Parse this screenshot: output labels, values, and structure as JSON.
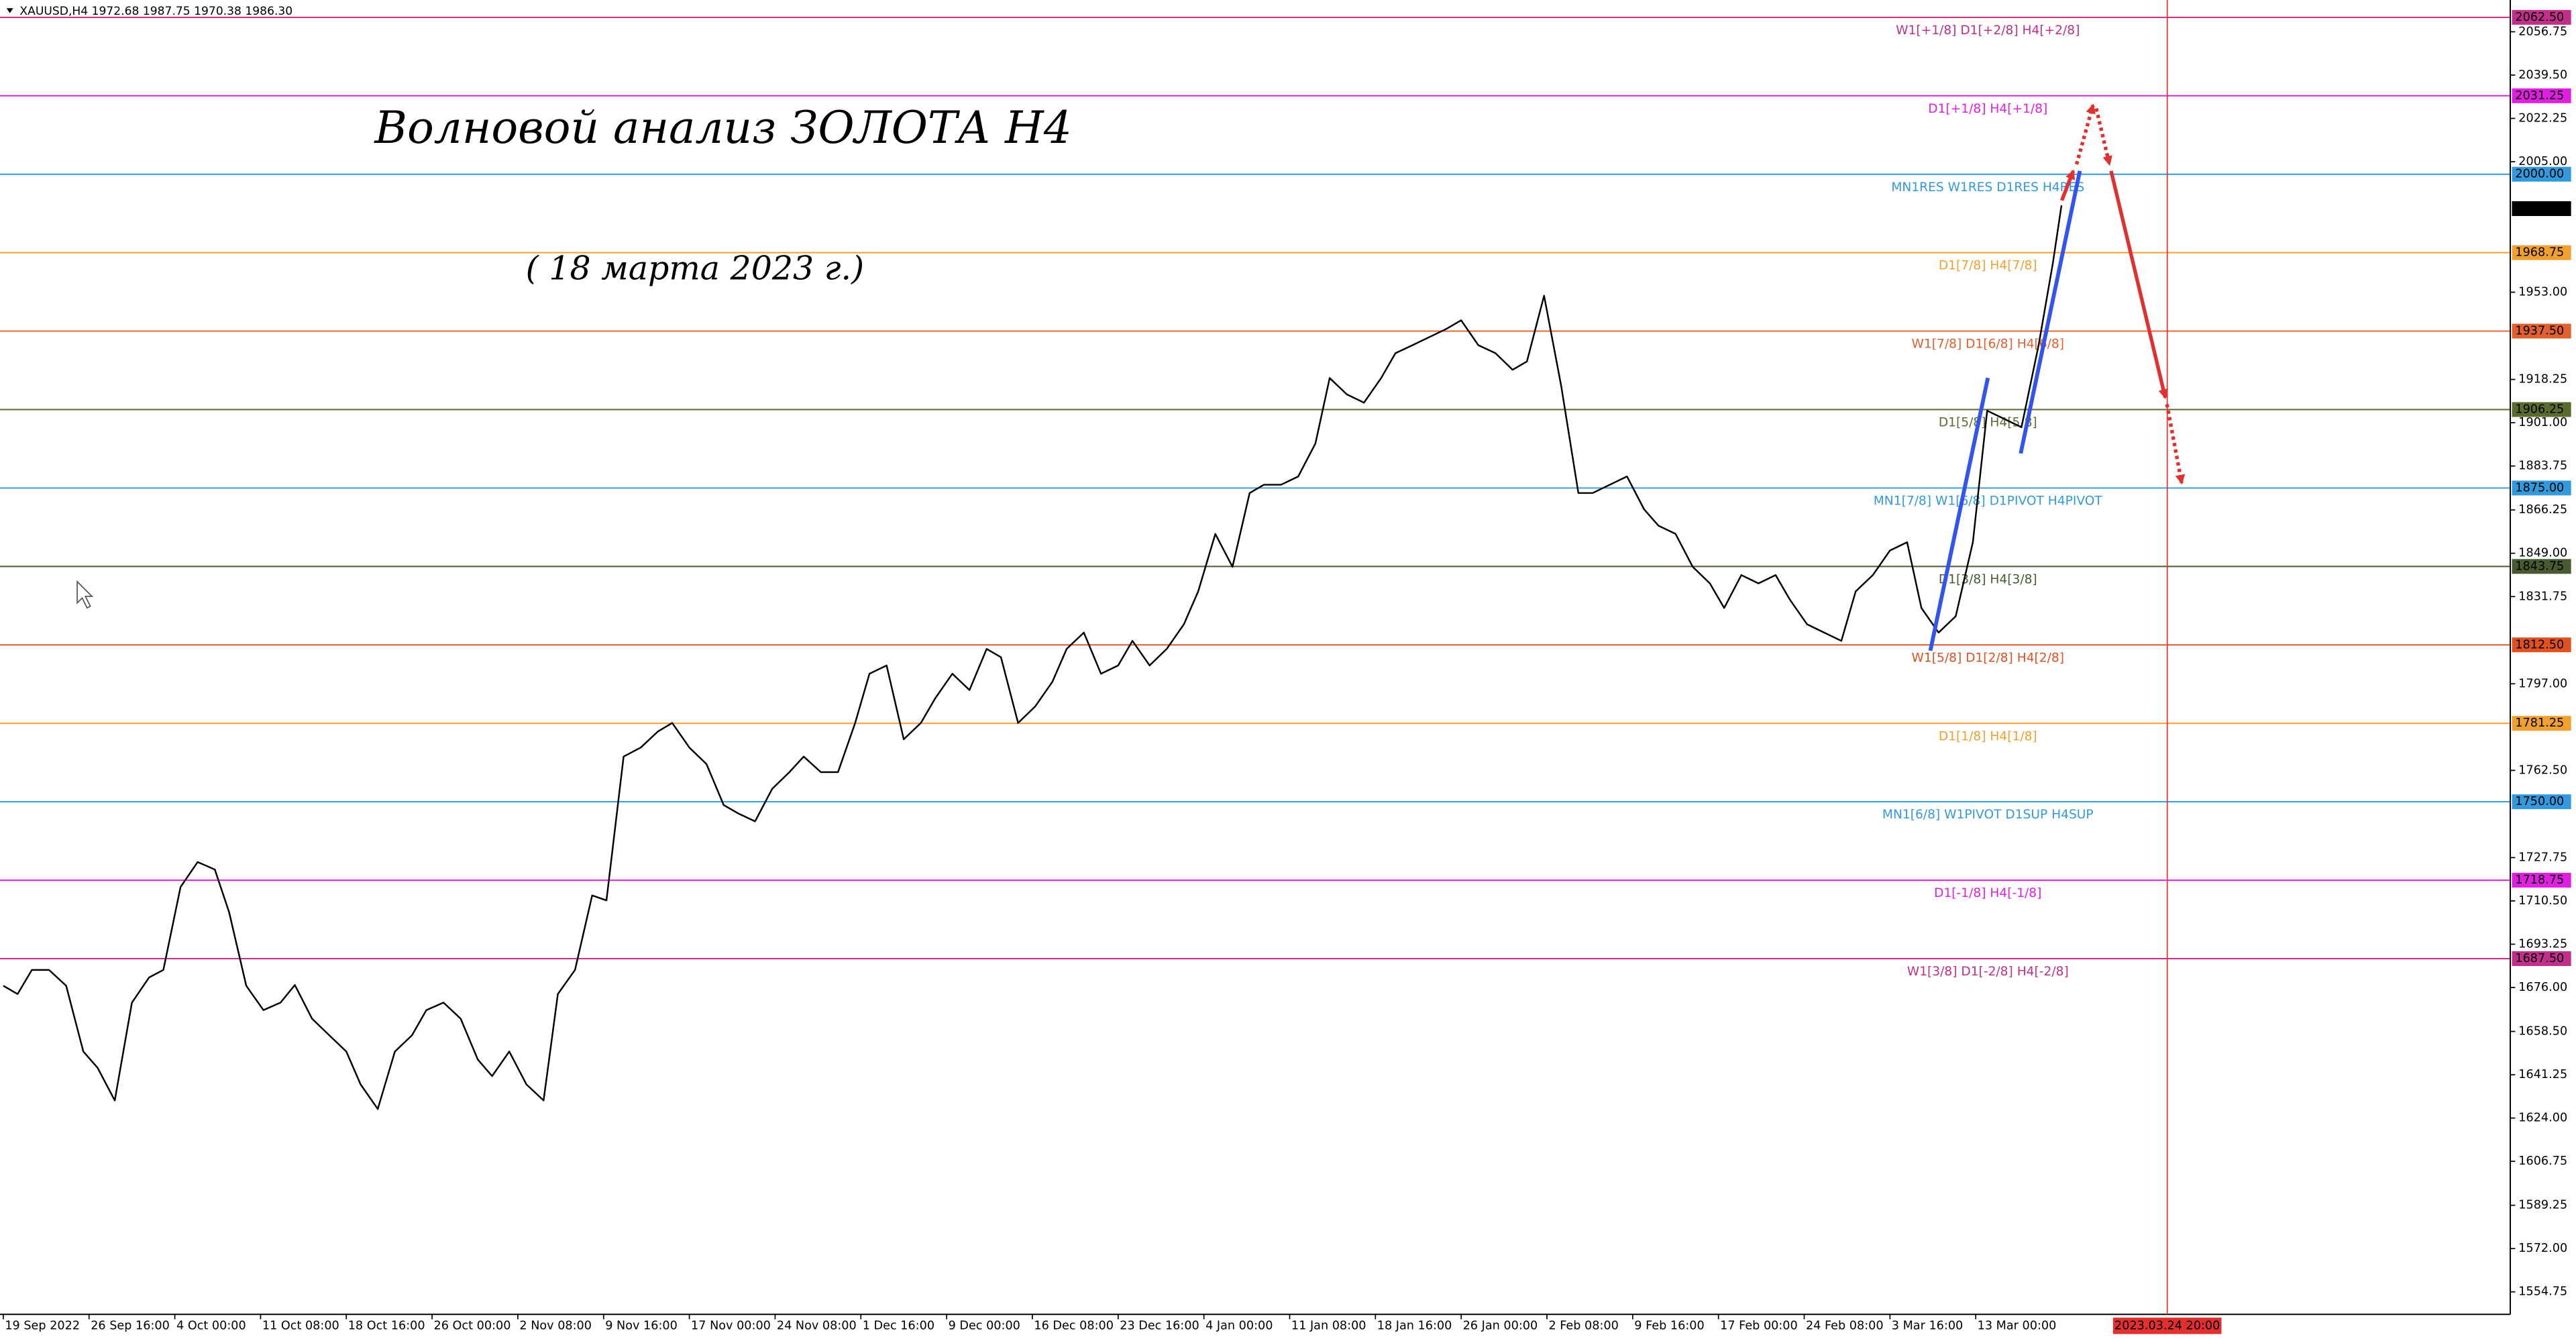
{
  "chart_data": {
    "type": "line",
    "header": "XAUUSD,H4  1972.68 1987.75 1970.38 1986.30",
    "title": "Волновой анализ ЗОЛОТА H4",
    "subtitle": "( 18 марта 2023 г.)",
    "color": "#000000",
    "x": [
      0,
      5,
      10,
      16,
      22,
      28,
      33,
      39,
      45,
      51,
      56,
      62,
      68,
      74,
      79,
      85,
      91,
      97,
      102,
      108,
      114,
      120,
      125,
      131,
      137,
      143,
      148,
      154,
      160,
      166,
      171,
      177,
      183,
      189,
      194,
      200,
      206,
      211,
      217,
      223,
      229,
      234,
      240,
      246,
      252,
      257,
      263,
      269,
      275,
      280,
      286,
      292,
      298,
      303,
      309,
      315,
      321,
      326,
      332,
      338,
      344,
      349,
      355,
      361,
      367,
      372,
      378,
      384,
      390,
      395,
      401,
      407,
      413,
      418,
      424,
      430,
      436,
      441,
      447,
      453,
      459,
      464,
      470,
      476,
      482,
      487,
      493,
      499,
      505,
      510,
      516,
      522,
      528,
      533,
      539,
      545,
      551,
      556,
      562,
      568,
      574,
      579,
      585,
      591,
      597,
      602,
      608,
      614,
      620,
      625,
      631,
      637,
      643,
      648,
      654,
      660,
      666,
      671,
      677,
      683,
      689,
      694,
      700,
      706,
      712,
      717,
      720
    ],
    "values": [
      1676.7,
      1673.4,
      1683,
      1683,
      1676.7,
      1650.5,
      1644,
      1631,
      1670,
      1680,
      1683,
      1716,
      1726,
      1723,
      1706,
      1676.7,
      1667,
      1670,
      1677,
      1663.6,
      1657,
      1650.5,
      1637.4,
      1627.6,
      1650.5,
      1657,
      1667,
      1670,
      1663.6,
      1647.3,
      1640.7,
      1650.5,
      1637.4,
      1631,
      1673.4,
      1683,
      1712.7,
      1710.7,
      1768,
      1771.6,
      1778,
      1781.4,
      1771.6,
      1765,
      1748.7,
      1745.4,
      1742.2,
      1755.2,
      1761.8,
      1768,
      1761.8,
      1761.8,
      1781.4,
      1801,
      1804.3,
      1774.9,
      1781.4,
      1791.2,
      1801,
      1794.5,
      1810.9,
      1807.6,
      1781.4,
      1788,
      1797.8,
      1810.9,
      1817.4,
      1801,
      1804.3,
      1814.1,
      1804.3,
      1810.9,
      1820.7,
      1833.8,
      1856.7,
      1843.6,
      1873,
      1876.3,
      1876.3,
      1879.6,
      1892.7,
      1918.8,
      1912.3,
      1909,
      1918.8,
      1928.7,
      1931.9,
      1935.2,
      1938.5,
      1941.8,
      1931.9,
      1928.7,
      1922.1,
      1925.4,
      1951.6,
      1915.6,
      1873,
      1873,
      1876.3,
      1879.6,
      1866.5,
      1860,
      1856.7,
      1843.6,
      1837,
      1827.2,
      1840.3,
      1837,
      1840.3,
      1830.5,
      1820.7,
      1817.4,
      1814.1,
      1833.8,
      1840.3,
      1850.1,
      1853.4,
      1827.2,
      1817.4,
      1823.9,
      1853.4,
      1905.8,
      1902.5,
      1899.2,
      1931.9,
      1964.7,
      1987.6
    ],
    "xlim": [
      -1.15,
      877
    ],
    "ylim": [
      1545.8,
      2069.4
    ],
    "xticks": [
      {
        "value": 0,
        "label": "19 Sep 2022"
      },
      {
        "value": 30,
        "label": "26 Sep 16:00"
      },
      {
        "value": 60,
        "label": "4 Oct 00:00"
      },
      {
        "value": 90,
        "label": "11 Oct 08:00"
      },
      {
        "value": 120,
        "label": "18 Oct 16:00"
      },
      {
        "value": 150,
        "label": "26 Oct 00:00"
      },
      {
        "value": 180,
        "label": "2 Nov 08:00"
      },
      {
        "value": 210,
        "label": "9 Nov 16:00"
      },
      {
        "value": 240,
        "label": "17 Nov 00:00"
      },
      {
        "value": 270,
        "label": "24 Nov 08:00"
      },
      {
        "value": 300,
        "label": "1 Dec 16:00"
      },
      {
        "value": 330,
        "label": "9 Dec 00:00"
      },
      {
        "value": 360,
        "label": "16 Dec 08:00"
      },
      {
        "value": 390,
        "label": "23 Dec 16:00"
      },
      {
        "value": 420,
        "label": "4 Jan 00:00"
      },
      {
        "value": 450,
        "label": "11 Jan 08:00"
      },
      {
        "value": 480,
        "label": "18 Jan 16:00"
      },
      {
        "value": 510,
        "label": "26 Jan 00:00"
      },
      {
        "value": 540,
        "label": "2 Feb 08:00"
      },
      {
        "value": 570,
        "label": "9 Feb 16:00"
      },
      {
        "value": 600,
        "label": "17 Feb 00:00"
      },
      {
        "value": 630,
        "label": "24 Feb 08:00"
      },
      {
        "value": 660,
        "label": "3 Mar 16:00"
      },
      {
        "value": 690,
        "label": "13 Mar 00:00"
      }
    ],
    "yticks": [
      2056.75,
      {
        "value": 2039.5,
        "label": "2039.50"
      },
      2022.25,
      {
        "value": 2005,
        "label": "2005.00"
      },
      {
        "value": 1953,
        "label": "1953.00"
      },
      1918.25,
      {
        "value": 1901,
        "label": "1901.00"
      },
      1883.75,
      1866.25,
      {
        "value": 1849,
        "label": "1849.00"
      },
      1831.75,
      {
        "value": 1797,
        "label": "1797.00"
      },
      {
        "value": 1762.5,
        "label": "1762.50"
      },
      1727.75,
      {
        "value": 1710.5,
        "label": "1710.50"
      },
      1693.25,
      {
        "value": 1676,
        "label": "1676.00"
      },
      {
        "value": 1658.5,
        "label": "1658.50"
      },
      1641.25,
      {
        "value": 1624,
        "label": "1624.00"
      },
      1606.75,
      1589.25,
      {
        "value": 1572,
        "label": "1572.00"
      },
      1554.75
    ],
    "levels": [
      {
        "value": 2062.5,
        "value_label": "2062.50",
        "text": "W1[+1/8] D1[+2/8] H4[+2/8]",
        "color": "#c0308a"
      },
      {
        "value": 2031.25,
        "value_label": "2031.25",
        "text": "D1[+1/8] H4[+1/8]",
        "color": "#e020e0"
      },
      {
        "value": 2000,
        "value_label": "2000.00",
        "text": "MN1RES W1RES D1RES H4RES",
        "color": "#3399dd"
      },
      {
        "value": 1968.75,
        "value_label": "1968.75",
        "text": "D1[7/8] H4[7/8]",
        "color": "#f0a030"
      },
      {
        "value": 1937.5,
        "value_label": "1937.50",
        "text": "W1[7/8] D1[6/8] H4[6/8]",
        "color": "#e06030"
      },
      {
        "value": 1906.25,
        "value_label": "1906.25",
        "text": "D1[5/8] H4[5/8]",
        "color": "#5a6b30"
      },
      {
        "value": 1875,
        "value_label": "1875.00",
        "text": "MN1[7/8] W1[6/8] D1PIVOT H4PIVOT",
        "color": "#3399dd"
      },
      {
        "value": 1843.75,
        "value_label": "1843.75",
        "text": "D1[3/8] H4[3/8]",
        "color": "#4a5a30"
      },
      {
        "value": 1812.5,
        "value_label": "1812.50",
        "text": "W1[5/8] D1[2/8] H4[2/8]",
        "color": "#e05020"
      },
      {
        "value": 1781.25,
        "value_label": "1781.25",
        "text": "D1[1/8] H4[1/8]",
        "color": "#f0a030"
      },
      {
        "value": 1750,
        "value_label": "1750.00",
        "text": "MN1[6/8] W1PIVOT D1SUP H4SUP",
        "color": "#3399dd"
      },
      {
        "value": 1718.75,
        "value_label": "1718.75",
        "text": "D1[-1/8] H4[-1/8]",
        "color": "#e020e0"
      },
      {
        "value": 1687.5,
        "value_label": "1687.50",
        "text": "W1[3/8] D1[-2/8] H4[-2/8]",
        "color": "#c0308a"
      }
    ],
    "current_price": {
      "value": 1986.3,
      "label": "1986.30"
    },
    "time_marker": {
      "value": 757,
      "label": "2023.03.24 20:00",
      "color": "#e03030"
    }
  }
}
